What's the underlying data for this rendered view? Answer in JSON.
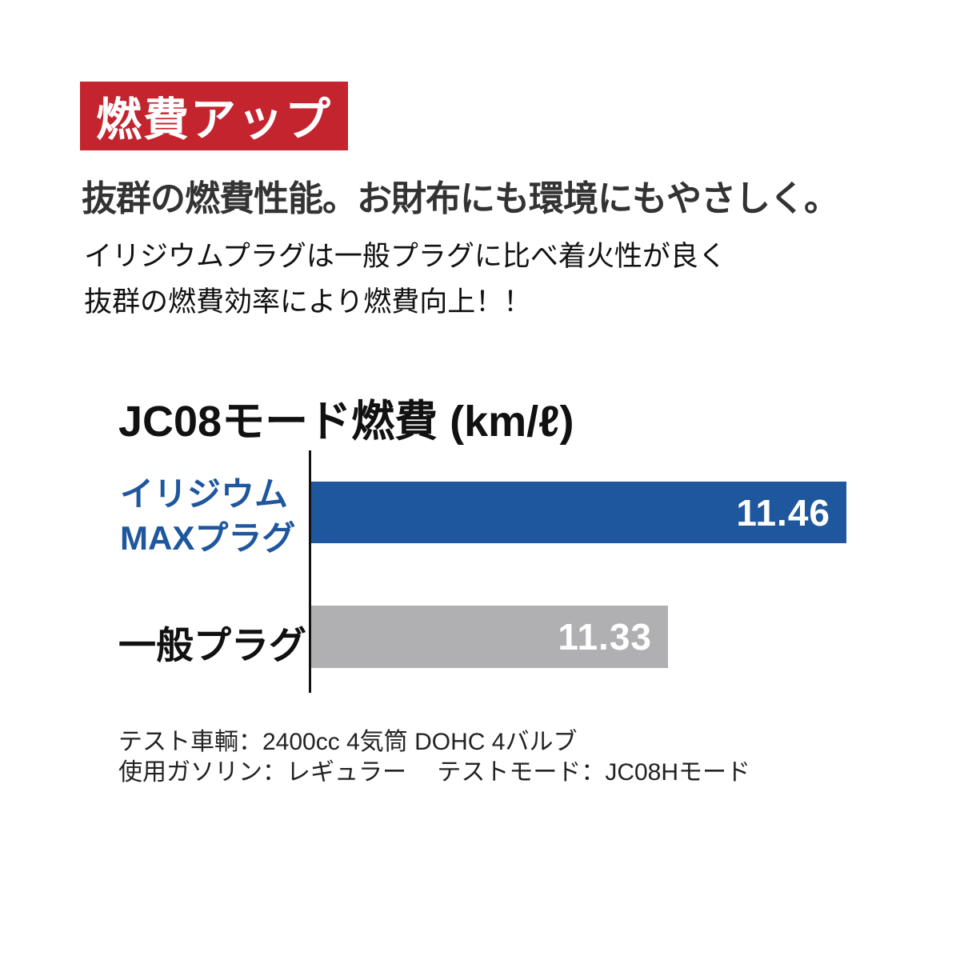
{
  "page": {
    "background": "#FFFFFF"
  },
  "badge": {
    "label": "燃費アップ",
    "bg_color": "#C3242D",
    "text_color": "#FFFFFF"
  },
  "headline": "抜群の燃費性能。お財布にも環境にもやさしく。",
  "body_lines": [
    "イリジウムプラグは一般プラグに比べ着火性が良く",
    "抜群の燃費効率により燃費向上！！"
  ],
  "chart_data": {
    "type": "bar",
    "orientation": "horizontal",
    "title": "JC08モード燃費 (km/ℓ)",
    "unit": "km/ℓ",
    "categories": [
      "イリジウムMAXプラグ",
      "一般プラグ"
    ],
    "values": [
      11.46,
      11.33
    ],
    "value_labels": [
      "11.46",
      "11.33"
    ],
    "xlim": [
      11.07,
      11.52
    ],
    "grid": false,
    "axis_color": "#111111",
    "value_labels_inside_bars": true,
    "bars": [
      {
        "label_lines": [
          "イリジウム",
          "MAXプラグ"
        ],
        "value": 11.46,
        "color": "#1E579E",
        "label_color": "#1E579E",
        "value_color": "#FFFFFF"
      },
      {
        "label_lines": [
          "一般プラグ"
        ],
        "value": 11.33,
        "color": "#B0B0B2",
        "label_color": "#111111",
        "value_color": "#FFFFFF"
      }
    ]
  },
  "footnotes": [
    "テスト車輌：2400cc 4気筒 DOHC 4バルブ",
    "使用ガソリン：レギュラー　 テストモード：JC08Hモード"
  ]
}
